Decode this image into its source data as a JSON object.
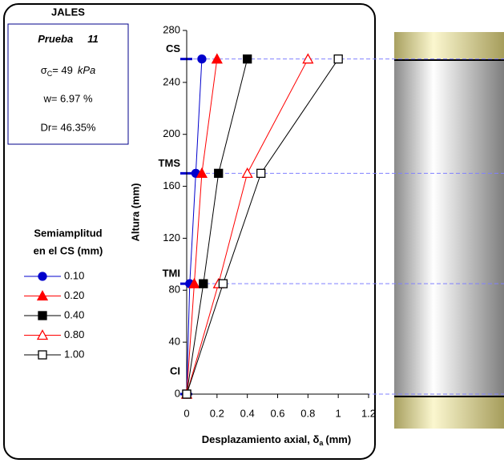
{
  "chart_data": {
    "type": "line",
    "title": "JALES",
    "info": {
      "test": "Prueba",
      "test_no": "11",
      "sigma": "σ",
      "sigma_sub": "C",
      "sigma_value": "= 49",
      "sigma_unit": "kPa",
      "w": "w= 6.97 %",
      "dr": "Dr= 46.35%"
    },
    "legend_title": [
      "Semiamplitud",
      "en el CS (mm)"
    ],
    "y_label": "Altura (mm)",
    "x_label": "Desplazamiento axial, δ",
    "x_label_sub": "a",
    "x_label_unit": "(mm)",
    "xlim": [
      0,
      1.2
    ],
    "xticks": [
      0,
      0.2,
      0.4,
      0.6,
      0.8,
      1,
      1.2
    ],
    "ylim": [
      0,
      280
    ],
    "yticks": [
      0,
      40,
      80,
      120,
      160,
      200,
      240,
      280
    ],
    "levels": [
      {
        "label": "CS",
        "value": 258
      },
      {
        "label": "TMS",
        "value": 170
      },
      {
        "label": "TMI",
        "value": 85
      },
      {
        "label": "CI",
        "value": 0
      }
    ],
    "series": [
      {
        "name": "0.10",
        "color": "#0000cc",
        "marker": "circle",
        "filled": true,
        "x": [
          0,
          0.02,
          0.06,
          0.1
        ],
        "values": [
          0,
          85,
          170,
          258
        ]
      },
      {
        "name": "0.20",
        "color": "#ff0000",
        "marker": "triangle",
        "filled": true,
        "x": [
          0,
          0.05,
          0.1,
          0.2
        ],
        "values": [
          0,
          85,
          170,
          258
        ]
      },
      {
        "name": "0.40",
        "color": "#000000",
        "marker": "square",
        "filled": true,
        "x": [
          0,
          0.11,
          0.21,
          0.4
        ],
        "values": [
          0,
          85,
          170,
          258
        ]
      },
      {
        "name": "0.80",
        "color": "#ff0000",
        "marker": "triangle",
        "filled": false,
        "x": [
          0,
          0.21,
          0.4,
          0.8
        ],
        "values": [
          0,
          85,
          170,
          258
        ]
      },
      {
        "name": "1.00",
        "color": "#000000",
        "marker": "square",
        "filled": false,
        "x": [
          0,
          0.24,
          0.49,
          1
        ],
        "values": [
          0,
          85,
          170,
          258
        ]
      }
    ]
  }
}
